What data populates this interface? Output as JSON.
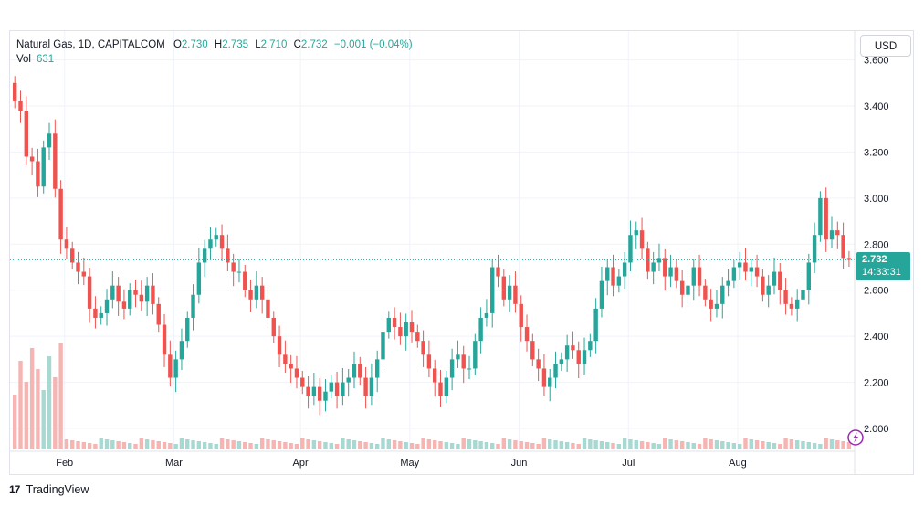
{
  "legend": {
    "symbol": "Natural Gas, 1D, CAPITALCOM",
    "open_label": "O",
    "open": "2.730",
    "high_label": "H",
    "high": "2.735",
    "low_label": "L",
    "low": "2.710",
    "close_label": "C",
    "close": "2.732",
    "change": "−0.001 (−0.04%)",
    "vol_label": "Vol",
    "vol_value": "631"
  },
  "currency_button": "USD",
  "last_price": {
    "price": "2.732",
    "countdown": "14:33:31"
  },
  "footer": {
    "logo": "17",
    "brand": "TradingView"
  },
  "colors": {
    "up": "#26a69a",
    "down": "#ef5350",
    "volume_up": "#a8d8d2",
    "volume_down": "#f5b5b3",
    "grid": "#f0f3fa",
    "last_price_line": "#26a69a"
  },
  "chart_data": {
    "type": "candlestick",
    "instrument": "Natural Gas",
    "interval": "1D",
    "source": "CAPITALCOM",
    "y_ticks": [
      "2.000",
      "2.200",
      "2.400",
      "2.600",
      "2.800",
      "3.000",
      "3.200",
      "3.400",
      "3.600"
    ],
    "x_month_labels": [
      "Feb",
      "Mar",
      "Apr",
      "May",
      "Jun",
      "Jul",
      "Aug"
    ],
    "ylim": [
      1.9,
      3.65
    ],
    "last_price": 2.732,
    "grid": true,
    "candles_close": [
      3.42,
      3.38,
      3.18,
      3.16,
      3.05,
      3.22,
      3.28,
      3.04,
      2.82,
      2.78,
      2.72,
      2.68,
      2.66,
      2.52,
      2.48,
      2.5,
      2.56,
      2.62,
      2.55,
      2.52,
      2.6,
      2.58,
      2.55,
      2.62,
      2.54,
      2.45,
      2.32,
      2.22,
      2.3,
      2.38,
      2.48,
      2.58,
      2.72,
      2.78,
      2.82,
      2.84,
      2.78,
      2.72,
      2.68,
      2.68,
      2.6,
      2.56,
      2.62,
      2.56,
      2.48,
      2.4,
      2.32,
      2.28,
      2.26,
      2.22,
      2.18,
      2.14,
      2.18,
      2.12,
      2.16,
      2.2,
      2.14,
      2.2,
      2.22,
      2.28,
      2.22,
      2.14,
      2.22,
      2.3,
      2.42,
      2.48,
      2.44,
      2.4,
      2.46,
      2.42,
      2.38,
      2.32,
      2.26,
      2.2,
      2.14,
      2.22,
      2.3,
      2.32,
      2.26,
      2.26,
      2.38,
      2.48,
      2.5,
      2.7,
      2.66,
      2.56,
      2.62,
      2.54,
      2.44,
      2.38,
      2.3,
      2.26,
      2.18,
      2.22,
      2.28,
      2.3,
      2.36,
      2.34,
      2.28,
      2.34,
      2.38,
      2.52,
      2.64,
      2.7,
      2.62,
      2.66,
      2.72,
      2.84,
      2.86,
      2.78,
      2.68,
      2.72,
      2.74,
      2.66,
      2.7,
      2.64,
      2.58,
      2.62,
      2.7,
      2.62,
      2.56,
      2.52,
      2.54,
      2.62,
      2.64,
      2.7,
      2.72,
      2.68,
      2.7,
      2.66,
      2.58,
      2.62,
      2.68,
      2.6,
      2.54,
      2.52,
      2.56,
      2.6,
      2.72,
      2.84,
      3.0,
      2.82,
      2.86,
      2.84,
      2.74,
      2.732
    ],
    "volume_profile": "high volume bars in late January, low volume thereafter"
  }
}
